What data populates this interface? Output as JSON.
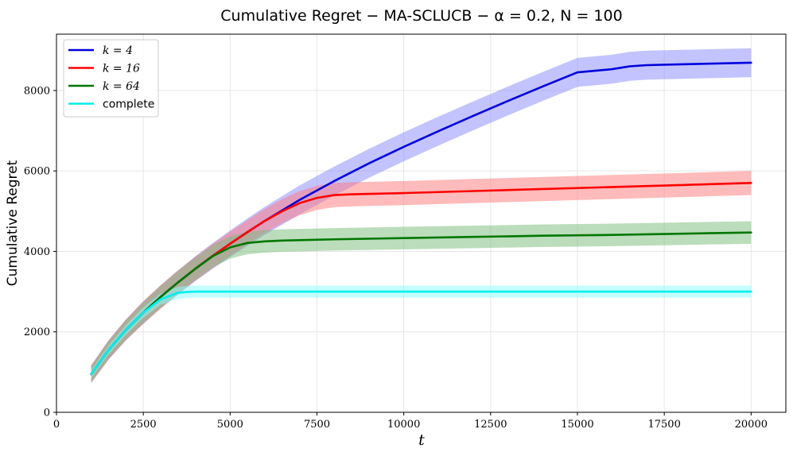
{
  "chart_data": {
    "type": "line",
    "title": "Cumulative Regret − MA-SCLUCB − α = 0.2, N = 100",
    "xlabel": "t",
    "ylabel": "Cumulative Regret",
    "xlim": [
      0,
      21000
    ],
    "ylim": [
      0,
      9400
    ],
    "xticks": [
      0,
      2500,
      5000,
      7500,
      10000,
      12500,
      15000,
      17500,
      20000
    ],
    "yticks": [
      0,
      2000,
      4000,
      6000,
      8000
    ],
    "grid": true,
    "legend_position": "top-left",
    "series": [
      {
        "name": "k = 4",
        "color": "#0000dd",
        "band_color": "#8888ff",
        "x": [
          1000,
          1500,
          2000,
          2500,
          3000,
          3500,
          4000,
          4500,
          5000,
          5500,
          6000,
          7000,
          8000,
          9000,
          10000,
          11000,
          12000,
          13000,
          14000,
          15000,
          16000,
          16500,
          17000,
          18000,
          19000,
          20000
        ],
        "y": [
          950,
          1550,
          2050,
          2480,
          2870,
          3230,
          3570,
          3890,
          4190,
          4480,
          4760,
          5280,
          5750,
          6190,
          6600,
          6990,
          7370,
          7740,
          8100,
          8450,
          8530,
          8600,
          8630,
          8650,
          8670,
          8690
        ],
        "band": [
          220,
          240,
          260,
          280,
          290,
          300,
          310,
          320,
          330,
          340,
          350,
          360,
          360,
          360,
          360,
          360,
          360,
          360,
          360,
          360,
          360,
          360,
          360,
          360,
          360,
          360
        ]
      },
      {
        "name": "k = 16",
        "color": "#ff0000",
        "band_color": "#ff7777",
        "x": [
          1000,
          1500,
          2000,
          2500,
          3000,
          3500,
          4000,
          4500,
          5000,
          5500,
          6000,
          6500,
          7000,
          7500,
          8000,
          8500,
          9000,
          10000,
          12000,
          14000,
          16000,
          18000,
          20000
        ],
        "y": [
          950,
          1550,
          2050,
          2480,
          2870,
          3230,
          3570,
          3890,
          4190,
          4480,
          4760,
          5000,
          5200,
          5330,
          5400,
          5420,
          5430,
          5450,
          5500,
          5550,
          5600,
          5650,
          5700
        ],
        "band": [
          220,
          240,
          260,
          280,
          290,
          300,
          300,
          300,
          300,
          300,
          300,
          300,
          300,
          300,
          300,
          300,
          300,
          300,
          300,
          300,
          300,
          300,
          300
        ]
      },
      {
        "name": "k = 64",
        "color": "#007700",
        "band_color": "#77bb77",
        "x": [
          1000,
          1500,
          2000,
          2500,
          3000,
          3500,
          4000,
          4500,
          5000,
          5500,
          6000,
          6500,
          7000,
          8000,
          10000,
          12000,
          14000,
          16000,
          18000,
          20000
        ],
        "y": [
          950,
          1550,
          2050,
          2480,
          2870,
          3230,
          3570,
          3880,
          4100,
          4210,
          4250,
          4270,
          4280,
          4300,
          4330,
          4360,
          4390,
          4410,
          4440,
          4470
        ],
        "band": [
          200,
          220,
          240,
          260,
          270,
          280,
          280,
          280,
          280,
          280,
          280,
          280,
          280,
          280,
          280,
          280,
          280,
          280,
          280,
          280
        ]
      },
      {
        "name": "complete",
        "color": "#00eeee",
        "band_color": "#88ffff",
        "x": [
          1000,
          1500,
          2000,
          2500,
          3000,
          3500,
          3750,
          4000,
          5000,
          7500,
          10000,
          12500,
          15000,
          17500,
          20000
        ],
        "y": [
          950,
          1550,
          2050,
          2480,
          2810,
          2970,
          2990,
          3000,
          3000,
          3000,
          3000,
          3000,
          3000,
          3000,
          3000
        ],
        "band": [
          100,
          110,
          120,
          130,
          140,
          150,
          150,
          150,
          150,
          150,
          150,
          150,
          150,
          150,
          150
        ]
      }
    ]
  }
}
